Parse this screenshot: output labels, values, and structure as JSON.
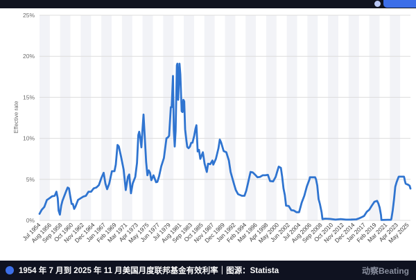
{
  "ui": {
    "accent": "#3d6fe8",
    "footer_caption": "1954 年 7 月到 2025 年 11 月美国月度联邦基金有效利率｜图源：Statista",
    "brand_logo": "动察Beating"
  },
  "chart_data": {
    "type": "line",
    "title": "",
    "xlabel": "",
    "ylabel": "Effective rate",
    "ylim": [
      0,
      25
    ],
    "yticks": [
      "0%",
      "5%",
      "10%",
      "15%",
      "20%",
      "25%"
    ],
    "xlim": [
      "1954-07",
      "2025-11"
    ],
    "x_tick_labels": [
      "Jul 1954",
      "Aug 1956",
      "Sep 1958",
      "Oct 1960",
      "Nov 1962",
      "Dec 1964",
      "Jan 1967",
      "Feb 1969",
      "Mar 1971",
      "Apr 1973",
      "May 1975",
      "Jun 1977",
      "Jul 1979",
      "Aug 1981",
      "Sep 1983",
      "Oct 1985",
      "Nov 1987",
      "Dec 1989",
      "Jan 1992",
      "Feb 1994",
      "Mar 1996",
      "Apr 1998",
      "May 2000",
      "Jun 2002",
      "Jul 2004",
      "Aug 2006",
      "Sep 2008",
      "Oct 2010",
      "Nov 2012",
      "Dec 2014",
      "Jan 2017",
      "Feb 2019",
      "Mar 2021",
      "Apr 2023",
      "May 2025"
    ],
    "grid": "alternating vertical bands",
    "line_color": "#2f74d0",
    "series": [
      {
        "values": [
          [
            "1954-07",
            0.8
          ],
          [
            "1954-12",
            1.28
          ],
          [
            "1955-06",
            1.64
          ],
          [
            "1955-12",
            2.48
          ],
          [
            "1956-06",
            2.7
          ],
          [
            "1956-12",
            2.94
          ],
          [
            "1957-06",
            3.0
          ],
          [
            "1957-10",
            3.5
          ],
          [
            "1958-01",
            2.7
          ],
          [
            "1958-03",
            1.2
          ],
          [
            "1958-06",
            0.7
          ],
          [
            "1958-09",
            1.8
          ],
          [
            "1958-12",
            2.4
          ],
          [
            "1959-04",
            2.95
          ],
          [
            "1959-08",
            3.5
          ],
          [
            "1959-12",
            4.0
          ],
          [
            "1960-03",
            3.9
          ],
          [
            "1960-06",
            2.9
          ],
          [
            "1960-09",
            2.0
          ],
          [
            "1960-12",
            2.0
          ],
          [
            "1961-03",
            1.4
          ],
          [
            "1961-06",
            1.7
          ],
          [
            "1961-12",
            2.5
          ],
          [
            "1962-06",
            2.7
          ],
          [
            "1962-12",
            2.9
          ],
          [
            "1963-06",
            3.0
          ],
          [
            "1963-12",
            3.5
          ],
          [
            "1964-06",
            3.5
          ],
          [
            "1964-12",
            3.9
          ],
          [
            "1965-06",
            4.0
          ],
          [
            "1965-12",
            4.3
          ],
          [
            "1966-06",
            5.2
          ],
          [
            "1966-11",
            5.8
          ],
          [
            "1967-03",
            4.5
          ],
          [
            "1967-07",
            3.8
          ],
          [
            "1967-12",
            4.5
          ],
          [
            "1968-06",
            6.0
          ],
          [
            "1968-12",
            6.0
          ],
          [
            "1969-03",
            6.8
          ],
          [
            "1969-07",
            9.2
          ],
          [
            "1969-10",
            9.0
          ],
          [
            "1970-03",
            7.8
          ],
          [
            "1970-09",
            6.2
          ],
          [
            "1971-02",
            3.7
          ],
          [
            "1971-07",
            5.3
          ],
          [
            "1971-10",
            5.6
          ],
          [
            "1972-02",
            3.3
          ],
          [
            "1972-06",
            4.5
          ],
          [
            "1972-12",
            5.3
          ],
          [
            "1973-04",
            7.0
          ],
          [
            "1973-07",
            10.4
          ],
          [
            "1973-09",
            10.8
          ],
          [
            "1973-12",
            9.9
          ],
          [
            "1974-02",
            8.9
          ],
          [
            "1974-05",
            11.3
          ],
          [
            "1974-07",
            12.9
          ],
          [
            "1974-10",
            10.0
          ],
          [
            "1975-01",
            7.1
          ],
          [
            "1975-04",
            5.5
          ],
          [
            "1975-07",
            6.1
          ],
          [
            "1975-10",
            5.8
          ],
          [
            "1976-01",
            4.9
          ],
          [
            "1976-06",
            5.5
          ],
          [
            "1976-12",
            4.65
          ],
          [
            "1977-03",
            4.7
          ],
          [
            "1977-07",
            5.4
          ],
          [
            "1977-12",
            6.6
          ],
          [
            "1978-06",
            7.6
          ],
          [
            "1978-12",
            10.0
          ],
          [
            "1979-03",
            10.1
          ],
          [
            "1979-06",
            10.3
          ],
          [
            "1979-10",
            13.8
          ],
          [
            "1979-12",
            13.8
          ],
          [
            "1980-03",
            17.6
          ],
          [
            "1980-05",
            11.0
          ],
          [
            "1980-07",
            9.0
          ],
          [
            "1980-09",
            10.9
          ],
          [
            "1980-12",
            18.9
          ],
          [
            "1981-01",
            19.1
          ],
          [
            "1981-03",
            14.7
          ],
          [
            "1981-06",
            19.1
          ],
          [
            "1981-08",
            17.8
          ],
          [
            "1981-11",
            13.3
          ],
          [
            "1982-01",
            13.2
          ],
          [
            "1982-03",
            14.7
          ],
          [
            "1982-05",
            14.5
          ],
          [
            "1982-07",
            11.1
          ],
          [
            "1982-10",
            9.7
          ],
          [
            "1982-12",
            8.95
          ],
          [
            "1983-03",
            8.8
          ],
          [
            "1983-06",
            8.98
          ],
          [
            "1983-09",
            9.45
          ],
          [
            "1983-12",
            9.47
          ],
          [
            "1984-04",
            10.3
          ],
          [
            "1984-07",
            11.2
          ],
          [
            "1984-09",
            11.6
          ],
          [
            "1984-12",
            8.4
          ],
          [
            "1985-03",
            8.6
          ],
          [
            "1985-06",
            7.5
          ],
          [
            "1985-12",
            8.3
          ],
          [
            "1986-04",
            6.9
          ],
          [
            "1986-09",
            5.9
          ],
          [
            "1986-12",
            6.9
          ],
          [
            "1987-05",
            6.85
          ],
          [
            "1987-10",
            7.3
          ],
          [
            "1987-12",
            6.8
          ],
          [
            "1988-06",
            7.5
          ],
          [
            "1988-12",
            8.8
          ],
          [
            "1989-03",
            9.85
          ],
          [
            "1989-06",
            9.5
          ],
          [
            "1989-12",
            8.45
          ],
          [
            "1990-06",
            8.3
          ],
          [
            "1990-12",
            7.3
          ],
          [
            "1991-04",
            5.9
          ],
          [
            "1991-12",
            4.4
          ],
          [
            "1992-04",
            3.7
          ],
          [
            "1992-09",
            3.2
          ],
          [
            "1993-06",
            3.0
          ],
          [
            "1993-12",
            3.0
          ],
          [
            "1994-04",
            3.6
          ],
          [
            "1994-08",
            4.5
          ],
          [
            "1994-12",
            5.45
          ],
          [
            "1995-02",
            5.9
          ],
          [
            "1995-07",
            5.85
          ],
          [
            "1995-12",
            5.6
          ],
          [
            "1996-06",
            5.25
          ],
          [
            "1996-12",
            5.3
          ],
          [
            "1997-06",
            5.5
          ],
          [
            "1997-12",
            5.5
          ],
          [
            "1998-06",
            5.55
          ],
          [
            "1998-11",
            4.8
          ],
          [
            "1999-06",
            4.75
          ],
          [
            "1999-12",
            5.3
          ],
          [
            "2000-03",
            5.85
          ],
          [
            "2000-07",
            6.55
          ],
          [
            "2000-12",
            6.4
          ],
          [
            "2001-03",
            5.3
          ],
          [
            "2001-06",
            3.9
          ],
          [
            "2001-09",
            3.1
          ],
          [
            "2001-12",
            1.8
          ],
          [
            "2002-06",
            1.75
          ],
          [
            "2002-12",
            1.25
          ],
          [
            "2003-06",
            1.2
          ],
          [
            "2003-12",
            1.0
          ],
          [
            "2004-06",
            1.0
          ],
          [
            "2004-09",
            1.6
          ],
          [
            "2004-12",
            2.15
          ],
          [
            "2005-06",
            3.0
          ],
          [
            "2005-12",
            4.15
          ],
          [
            "2006-06",
            5.0
          ],
          [
            "2006-07",
            5.25
          ],
          [
            "2007-07",
            5.25
          ],
          [
            "2007-09",
            5.0
          ],
          [
            "2007-12",
            4.25
          ],
          [
            "2008-03",
            2.6
          ],
          [
            "2008-06",
            2.0
          ],
          [
            "2008-10",
            0.97
          ],
          [
            "2008-12",
            0.16
          ],
          [
            "2009-06",
            0.21
          ],
          [
            "2010-06",
            0.18
          ],
          [
            "2011-06",
            0.09
          ],
          [
            "2012-06",
            0.16
          ],
          [
            "2013-06",
            0.09
          ],
          [
            "2014-06",
            0.1
          ],
          [
            "2015-06",
            0.13
          ],
          [
            "2015-12",
            0.24
          ],
          [
            "2016-06",
            0.38
          ],
          [
            "2016-12",
            0.54
          ],
          [
            "2017-06",
            1.04
          ],
          [
            "2017-12",
            1.3
          ],
          [
            "2018-06",
            1.82
          ],
          [
            "2018-12",
            2.27
          ],
          [
            "2019-06",
            2.38
          ],
          [
            "2019-09",
            2.04
          ],
          [
            "2019-12",
            1.55
          ],
          [
            "2020-03",
            0.65
          ],
          [
            "2020-04",
            0.05
          ],
          [
            "2021-06",
            0.08
          ],
          [
            "2022-02",
            0.08
          ],
          [
            "2022-03",
            0.2
          ],
          [
            "2022-06",
            1.21
          ],
          [
            "2022-09",
            2.56
          ],
          [
            "2022-12",
            4.1
          ],
          [
            "2023-03",
            4.65
          ],
          [
            "2023-06",
            5.08
          ],
          [
            "2023-08",
            5.33
          ],
          [
            "2024-08",
            5.33
          ],
          [
            "2024-09",
            5.13
          ],
          [
            "2024-10",
            4.83
          ],
          [
            "2024-12",
            4.48
          ],
          [
            "2025-06",
            4.33
          ],
          [
            "2025-09",
            4.22
          ],
          [
            "2025-11",
            3.88
          ]
        ]
      }
    ]
  }
}
